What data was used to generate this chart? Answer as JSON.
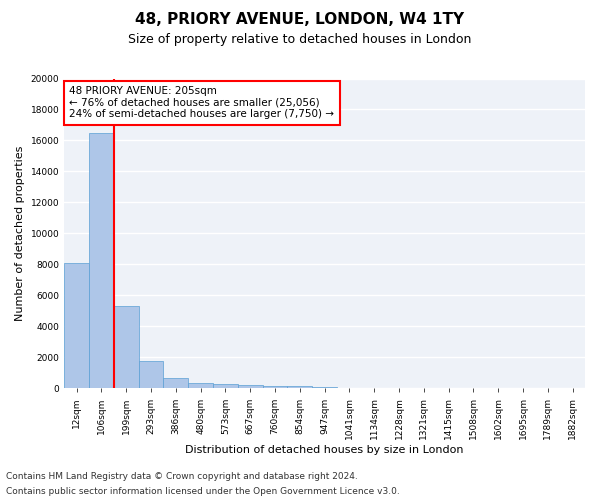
{
  "title_line1": "48, PRIORY AVENUE, LONDON, W4 1TY",
  "title_line2": "Size of property relative to detached houses in London",
  "xlabel": "Distribution of detached houses by size in London",
  "ylabel": "Number of detached properties",
  "categories": [
    "12sqm",
    "106sqm",
    "199sqm",
    "293sqm",
    "386sqm",
    "480sqm",
    "573sqm",
    "667sqm",
    "760sqm",
    "854sqm",
    "947sqm",
    "1041sqm",
    "1134sqm",
    "1228sqm",
    "1321sqm",
    "1415sqm",
    "1508sqm",
    "1602sqm",
    "1695sqm",
    "1789sqm",
    "1882sqm"
  ],
  "values": [
    8100,
    16500,
    5300,
    1750,
    650,
    350,
    280,
    200,
    170,
    120,
    80,
    50,
    30,
    20,
    15,
    10,
    8,
    5,
    4,
    3,
    2
  ],
  "bar_color": "#aec6e8",
  "bar_edge_color": "#5a9fd4",
  "vline_color": "red",
  "vline_pos": 1.5,
  "ylim": [
    0,
    20000
  ],
  "yticks": [
    0,
    2000,
    4000,
    6000,
    8000,
    10000,
    12000,
    14000,
    16000,
    18000,
    20000
  ],
  "annotation_text": "48 PRIORY AVENUE: 205sqm\n← 76% of detached houses are smaller (25,056)\n24% of semi-detached houses are larger (7,750) →",
  "annotation_box_color": "white",
  "annotation_box_edge": "red",
  "footnote_line1": "Contains HM Land Registry data © Crown copyright and database right 2024.",
  "footnote_line2": "Contains public sector information licensed under the Open Government Licence v3.0.",
  "background_color": "#eef2f8",
  "grid_color": "white",
  "title_fontsize": 11,
  "subtitle_fontsize": 9,
  "axis_label_fontsize": 8,
  "tick_fontsize": 6.5,
  "annotation_fontsize": 7.5,
  "footnote_fontsize": 6.5
}
